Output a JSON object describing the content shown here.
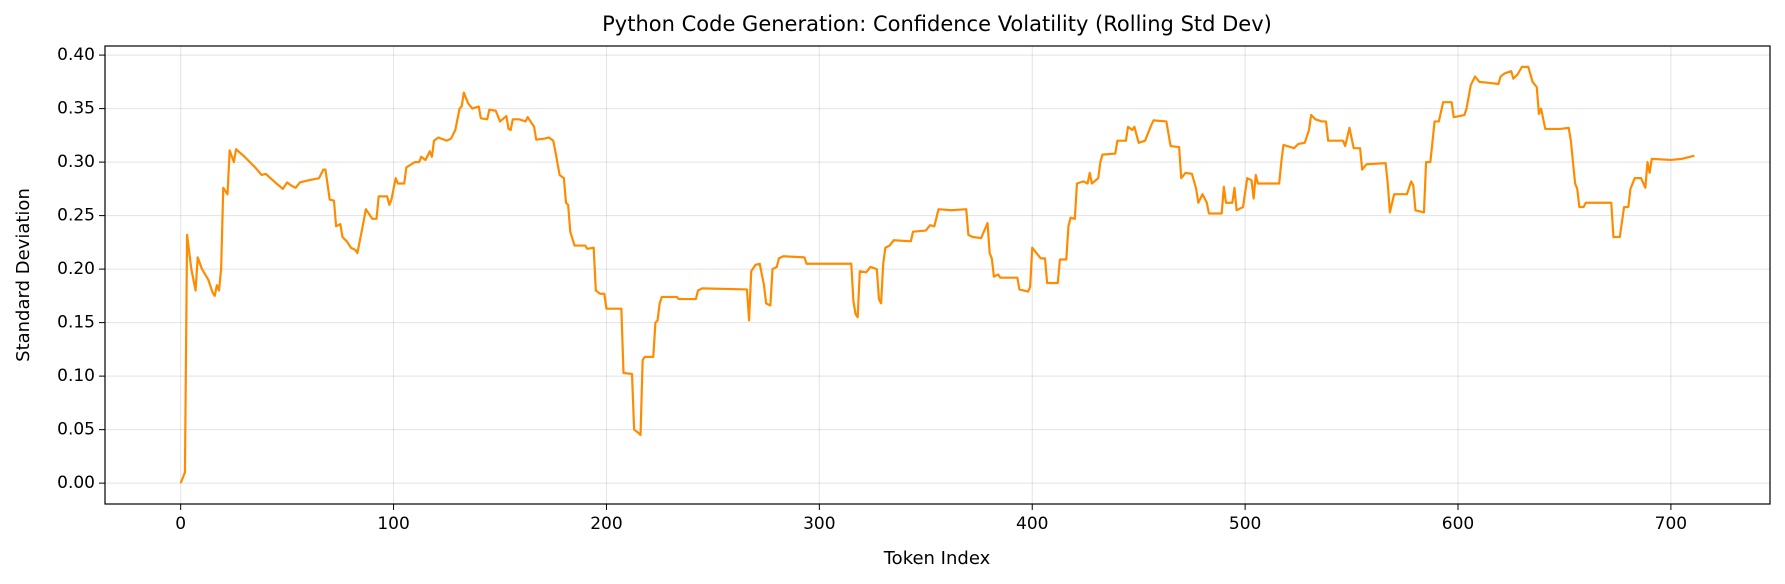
{
  "chart_data": {
    "type": "line",
    "title": "Python Code Generation: Confidence Volatility (Rolling Std Dev)",
    "xlabel": "Token Index",
    "ylabel": "Standard Deviation",
    "color": "#ff8c00",
    "grid": true,
    "xlim": [
      -35.55,
      746.55
    ],
    "xticks": [
      0,
      100,
      200,
      300,
      400,
      500,
      600,
      700
    ],
    "ylim": [
      -0.0195,
      0.4085
    ],
    "yticks": [
      {
        "value": 0,
        "label": "0.00"
      },
      {
        "value": 0.05,
        "label": "0.05"
      },
      {
        "value": 0.1,
        "label": "0.10"
      },
      {
        "value": 0.15,
        "label": "0.15"
      },
      {
        "value": 0.2,
        "label": "0.20"
      },
      {
        "value": 0.25,
        "label": "0.25"
      },
      {
        "value": 0.3,
        "label": "0.30"
      },
      {
        "value": 0.35,
        "label": "0.35"
      },
      {
        "value": 0.4,
        "label": "0.40"
      }
    ],
    "x": [
      0,
      2,
      3,
      5,
      7,
      8,
      10,
      13,
      15,
      16,
      17,
      18,
      19,
      20,
      22,
      23,
      25,
      26,
      30,
      35,
      38,
      40,
      45,
      48,
      50,
      52,
      54,
      56,
      60,
      65,
      67,
      68,
      70,
      72,
      73,
      75,
      76,
      78,
      80,
      82,
      83,
      85,
      87,
      89,
      90,
      92,
      93,
      97,
      98,
      99,
      101,
      102,
      105,
      106,
      110,
      112,
      113,
      115,
      117,
      118,
      119,
      121,
      125,
      127,
      129,
      131,
      132,
      133,
      135,
      137,
      140,
      141,
      144,
      145,
      148,
      150,
      153,
      154,
      155,
      156,
      159,
      162,
      163,
      166,
      167,
      171,
      173,
      175,
      176,
      178,
      180,
      181,
      182,
      183,
      185,
      190,
      191,
      194,
      195,
      197,
      199,
      200,
      207,
      208,
      212,
      213,
      215,
      216,
      217,
      218,
      222,
      223,
      224,
      225,
      226,
      233,
      234,
      242,
      243,
      245,
      266,
      267,
      268,
      270,
      272,
      274,
      275,
      277,
      278,
      280,
      281,
      283,
      293,
      294,
      315,
      316,
      317,
      318,
      319,
      322,
      324,
      327,
      328,
      329,
      330,
      331,
      333,
      335,
      343,
      344,
      350,
      352,
      354,
      356,
      362,
      369,
      370,
      372,
      376,
      379,
      380,
      381,
      382,
      384,
      385,
      393,
      394,
      398,
      399,
      400,
      402,
      404,
      406,
      407,
      412,
      413,
      416,
      417,
      418,
      420,
      421,
      424,
      426,
      427,
      428,
      431,
      432,
      433,
      439,
      440,
      444,
      445,
      447,
      448,
      450,
      453,
      456,
      457,
      463,
      465,
      469,
      470,
      472,
      475,
      477,
      478,
      480,
      482,
      483,
      489,
      490,
      491,
      494,
      495,
      496,
      499,
      501,
      503,
      504,
      505,
      506,
      516,
      517,
      518,
      523,
      525,
      528,
      530,
      531,
      533,
      536,
      538,
      539,
      546,
      547,
      549,
      551,
      554,
      555,
      557,
      566,
      567,
      568,
      570,
      576,
      578,
      579,
      580,
      584,
      585,
      587,
      589,
      591,
      593,
      597,
      598,
      603,
      604,
      606,
      608,
      610,
      615,
      619,
      620,
      622,
      625,
      626,
      628,
      630,
      633,
      635,
      637,
      638,
      639,
      641,
      648,
      652,
      653,
      655,
      656,
      657,
      659,
      660,
      672,
      673,
      676,
      678,
      680,
      681,
      683,
      686,
      688,
      689,
      690,
      691,
      700,
      705,
      711
    ],
    "values": [
      0,
      0.01,
      0.232,
      0.2,
      0.18,
      0.211,
      0.2,
      0.19,
      0.178,
      0.175,
      0.185,
      0.18,
      0.2,
      0.276,
      0.27,
      0.311,
      0.3,
      0.312,
      0.305,
      0.295,
      0.288,
      0.289,
      0.28,
      0.275,
      0.281,
      0.278,
      0.276,
      0.281,
      0.283,
      0.285,
      0.293,
      0.293,
      0.265,
      0.264,
      0.24,
      0.242,
      0.23,
      0.226,
      0.22,
      0.218,
      0.215,
      0.235,
      0.256,
      0.25,
      0.247,
      0.247,
      0.268,
      0.268,
      0.26,
      0.265,
      0.285,
      0.28,
      0.28,
      0.295,
      0.3,
      0.3,
      0.305,
      0.302,
      0.31,
      0.305,
      0.32,
      0.323,
      0.32,
      0.322,
      0.33,
      0.35,
      0.352,
      0.365,
      0.355,
      0.35,
      0.352,
      0.341,
      0.34,
      0.349,
      0.348,
      0.338,
      0.343,
      0.331,
      0.33,
      0.34,
      0.34,
      0.338,
      0.342,
      0.333,
      0.321,
      0.322,
      0.323,
      0.32,
      0.31,
      0.288,
      0.285,
      0.262,
      0.26,
      0.235,
      0.222,
      0.222,
      0.219,
      0.22,
      0.18,
      0.177,
      0.177,
      0.163,
      0.163,
      0.103,
      0.102,
      0.05,
      0.047,
      0.045,
      0.115,
      0.118,
      0.118,
      0.15,
      0.152,
      0.168,
      0.174,
      0.174,
      0.172,
      0.172,
      0.18,
      0.182,
      0.181,
      0.152,
      0.198,
      0.204,
      0.205,
      0.185,
      0.168,
      0.166,
      0.2,
      0.202,
      0.21,
      0.212,
      0.211,
      0.205,
      0.205,
      0.17,
      0.158,
      0.155,
      0.198,
      0.197,
      0.202,
      0.2,
      0.172,
      0.168,
      0.205,
      0.22,
      0.222,
      0.227,
      0.226,
      0.235,
      0.236,
      0.241,
      0.24,
      0.256,
      0.255,
      0.256,
      0.232,
      0.23,
      0.229,
      0.243,
      0.215,
      0.21,
      0.193,
      0.195,
      0.192,
      0.192,
      0.181,
      0.179,
      0.183,
      0.22,
      0.215,
      0.21,
      0.21,
      0.187,
      0.187,
      0.209,
      0.209,
      0.24,
      0.248,
      0.247,
      0.28,
      0.282,
      0.28,
      0.29,
      0.28,
      0.285,
      0.3,
      0.307,
      0.308,
      0.32,
      0.32,
      0.333,
      0.33,
      0.333,
      0.318,
      0.32,
      0.335,
      0.339,
      0.338,
      0.315,
      0.314,
      0.285,
      0.29,
      0.289,
      0.275,
      0.262,
      0.27,
      0.262,
      0.252,
      0.252,
      0.277,
      0.262,
      0.262,
      0.276,
      0.255,
      0.258,
      0.285,
      0.283,
      0.266,
      0.288,
      0.28,
      0.28,
      0.3,
      0.316,
      0.313,
      0.317,
      0.318,
      0.33,
      0.344,
      0.34,
      0.338,
      0.338,
      0.32,
      0.32,
      0.315,
      0.332,
      0.313,
      0.313,
      0.293,
      0.298,
      0.299,
      0.28,
      0.253,
      0.27,
      0.27,
      0.282,
      0.278,
      0.255,
      0.253,
      0.3,
      0.3,
      0.338,
      0.338,
      0.356,
      0.356,
      0.342,
      0.344,
      0.35,
      0.372,
      0.38,
      0.375,
      0.374,
      0.373,
      0.38,
      0.383,
      0.385,
      0.378,
      0.382,
      0.389,
      0.389,
      0.375,
      0.37,
      0.345,
      0.35,
      0.331,
      0.331,
      0.332,
      0.32,
      0.28,
      0.275,
      0.258,
      0.258,
      0.262,
      0.262,
      0.23,
      0.23,
      0.258,
      0.258,
      0.275,
      0.285,
      0.285,
      0.276,
      0.3,
      0.29,
      0.303,
      0.302,
      0.303,
      0.306
    ]
  }
}
